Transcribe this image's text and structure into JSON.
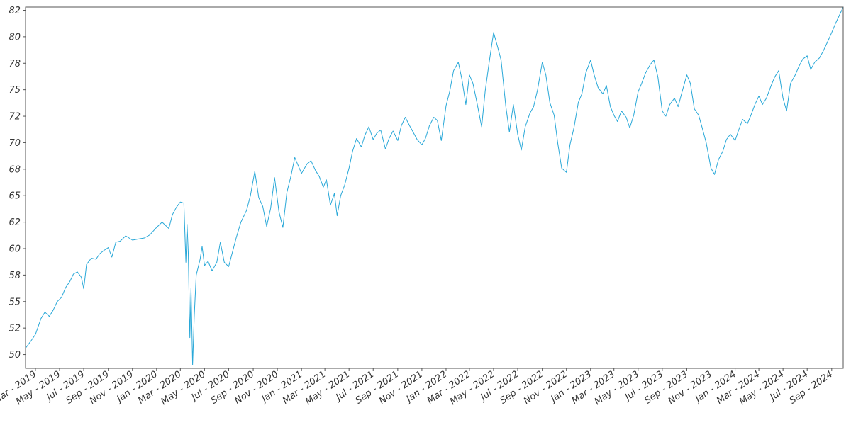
{
  "chart_data": {
    "type": "line",
    "title": "",
    "xlabel": "",
    "ylabel": "",
    "grid": false,
    "legend": "none",
    "xlim": [
      "2019-02-04",
      "2024-09-30"
    ],
    "ylim": [
      48.7,
      82.8
    ],
    "x_tick_labels": [
      "Mar - 2019",
      "May - 2019",
      "Jul - 2019",
      "Sep - 2019",
      "Nov - 2019",
      "Jan - 2020",
      "Mar - 2020",
      "May - 2020",
      "Jul - 2020",
      "Sep - 2020",
      "Nov - 2020",
      "Jan - 2021",
      "Mar - 2021",
      "May - 2021",
      "Jul - 2021",
      "Sep - 2021",
      "Nov - 2021",
      "Jan - 2022",
      "Mar - 2022",
      "May - 2022",
      "Jul - 2022",
      "Sep - 2022",
      "Nov - 2022",
      "Jan - 2023",
      "Mar - 2023",
      "May - 2023",
      "Jul - 2023",
      "Sep - 2023",
      "Nov - 2023",
      "Jan - 2024",
      "Mar - 2024",
      "May - 2024",
      "Jul - 2024",
      "Sep - 2024"
    ],
    "x_tick_dates": [
      "2019-03-01",
      "2019-05-01",
      "2019-07-01",
      "2019-09-01",
      "2019-11-01",
      "2020-01-01",
      "2020-03-01",
      "2020-05-01",
      "2020-07-01",
      "2020-09-01",
      "2020-11-01",
      "2021-01-01",
      "2021-03-01",
      "2021-05-01",
      "2021-07-01",
      "2021-09-01",
      "2021-11-01",
      "2022-01-01",
      "2022-03-01",
      "2022-05-01",
      "2022-07-01",
      "2022-09-01",
      "2022-11-01",
      "2023-01-01",
      "2023-03-01",
      "2023-05-01",
      "2023-07-01",
      "2023-09-01",
      "2023-11-01",
      "2024-01-01",
      "2024-03-01",
      "2024-05-01",
      "2024-07-01",
      "2024-09-01"
    ],
    "y_tick_values": [
      50,
      52.5,
      55,
      57.5,
      60,
      62.5,
      65,
      67.5,
      70,
      72.5,
      75,
      77.5,
      80,
      82.5
    ],
    "y_tick_labels": [
      "50",
      "52",
      "55",
      "58",
      "60",
      "62",
      "65",
      "68",
      "70",
      "72",
      "75",
      "78",
      "80",
      "82"
    ],
    "colors": {
      "line": "#29a8d8",
      "axis": "#555555",
      "text": "#333333"
    },
    "series": [
      {
        "points": [
          [
            "2019-02-04",
            50.6
          ],
          [
            "2019-02-18",
            51.3
          ],
          [
            "2019-03-01",
            51.9
          ],
          [
            "2019-03-15",
            53.4
          ],
          [
            "2019-03-25",
            54.0
          ],
          [
            "2019-04-05",
            53.6
          ],
          [
            "2019-04-15",
            54.2
          ],
          [
            "2019-04-25",
            55.0
          ],
          [
            "2019-05-06",
            55.4
          ],
          [
            "2019-05-16",
            56.3
          ],
          [
            "2019-05-27",
            56.9
          ],
          [
            "2019-06-05",
            57.6
          ],
          [
            "2019-06-15",
            57.8
          ],
          [
            "2019-06-25",
            57.3
          ],
          [
            "2019-07-01",
            56.2
          ],
          [
            "2019-07-08",
            58.5
          ],
          [
            "2019-07-20",
            59.1
          ],
          [
            "2019-08-01",
            59.0
          ],
          [
            "2019-08-10",
            59.5
          ],
          [
            "2019-08-20",
            59.8
          ],
          [
            "2019-09-01",
            60.1
          ],
          [
            "2019-09-10",
            59.2
          ],
          [
            "2019-09-20",
            60.6
          ],
          [
            "2019-10-01",
            60.7
          ],
          [
            "2019-10-15",
            61.2
          ],
          [
            "2019-11-01",
            60.8
          ],
          [
            "2019-11-15",
            60.9
          ],
          [
            "2019-12-01",
            61.0
          ],
          [
            "2019-12-15",
            61.3
          ],
          [
            "2020-01-01",
            62.0
          ],
          [
            "2020-01-15",
            62.5
          ],
          [
            "2020-02-01",
            61.9
          ],
          [
            "2020-02-10",
            63.2
          ],
          [
            "2020-02-20",
            63.9
          ],
          [
            "2020-03-01",
            64.4
          ],
          [
            "2020-03-10",
            64.3
          ],
          [
            "2020-03-15",
            58.7
          ],
          [
            "2020-03-18",
            62.3
          ],
          [
            "2020-03-21",
            59.6
          ],
          [
            "2020-03-25",
            51.6
          ],
          [
            "2020-03-28",
            56.3
          ],
          [
            "2020-04-01",
            49.0
          ],
          [
            "2020-04-05",
            53.6
          ],
          [
            "2020-04-10",
            57.5
          ],
          [
            "2020-04-20",
            59.0
          ],
          [
            "2020-04-25",
            60.2
          ],
          [
            "2020-05-01",
            58.4
          ],
          [
            "2020-05-10",
            58.8
          ],
          [
            "2020-05-20",
            57.9
          ],
          [
            "2020-06-01",
            58.7
          ],
          [
            "2020-06-10",
            60.6
          ],
          [
            "2020-06-20",
            58.7
          ],
          [
            "2020-07-01",
            58.3
          ],
          [
            "2020-07-10",
            59.6
          ],
          [
            "2020-07-20",
            61.0
          ],
          [
            "2020-08-01",
            62.5
          ],
          [
            "2020-08-15",
            63.6
          ],
          [
            "2020-08-25",
            65.0
          ],
          [
            "2020-09-05",
            67.3
          ],
          [
            "2020-09-15",
            64.8
          ],
          [
            "2020-09-25",
            64.0
          ],
          [
            "2020-10-05",
            62.1
          ],
          [
            "2020-10-15",
            63.8
          ],
          [
            "2020-10-25",
            66.7
          ],
          [
            "2020-11-05",
            63.5
          ],
          [
            "2020-11-15",
            62.0
          ],
          [
            "2020-11-25",
            65.3
          ],
          [
            "2020-12-05",
            66.8
          ],
          [
            "2020-12-15",
            68.6
          ],
          [
            "2021-01-01",
            67.1
          ],
          [
            "2021-01-15",
            68.0
          ],
          [
            "2021-01-25",
            68.3
          ],
          [
            "2021-02-05",
            67.4
          ],
          [
            "2021-02-15",
            66.8
          ],
          [
            "2021-02-25",
            65.8
          ],
          [
            "2021-03-05",
            66.5
          ],
          [
            "2021-03-15",
            64.1
          ],
          [
            "2021-03-25",
            65.2
          ],
          [
            "2021-04-01",
            63.1
          ],
          [
            "2021-04-10",
            65.0
          ],
          [
            "2021-04-20",
            66.0
          ],
          [
            "2021-05-01",
            67.6
          ],
          [
            "2021-05-10",
            69.2
          ],
          [
            "2021-05-20",
            70.4
          ],
          [
            "2021-06-01",
            69.6
          ],
          [
            "2021-06-10",
            70.7
          ],
          [
            "2021-06-20",
            71.5
          ],
          [
            "2021-07-01",
            70.3
          ],
          [
            "2021-07-10",
            70.9
          ],
          [
            "2021-07-20",
            71.2
          ],
          [
            "2021-08-01",
            69.4
          ],
          [
            "2021-08-10",
            70.4
          ],
          [
            "2021-08-20",
            71.1
          ],
          [
            "2021-09-01",
            70.2
          ],
          [
            "2021-09-10",
            71.6
          ],
          [
            "2021-09-20",
            72.4
          ],
          [
            "2021-10-01",
            71.6
          ],
          [
            "2021-10-10",
            71.0
          ],
          [
            "2021-10-20",
            70.3
          ],
          [
            "2021-11-01",
            69.8
          ],
          [
            "2021-11-10",
            70.4
          ],
          [
            "2021-11-20",
            71.6
          ],
          [
            "2021-12-01",
            72.4
          ],
          [
            "2021-12-10",
            72.1
          ],
          [
            "2021-12-20",
            70.2
          ],
          [
            "2022-01-01",
            73.5
          ],
          [
            "2022-01-10",
            74.8
          ],
          [
            "2022-01-20",
            76.8
          ],
          [
            "2022-02-01",
            77.6
          ],
          [
            "2022-02-10",
            76.0
          ],
          [
            "2022-02-20",
            73.6
          ],
          [
            "2022-03-01",
            76.4
          ],
          [
            "2022-03-10",
            75.6
          ],
          [
            "2022-03-20",
            73.8
          ],
          [
            "2022-04-01",
            71.5
          ],
          [
            "2022-04-10",
            74.9
          ],
          [
            "2022-04-20",
            77.6
          ],
          [
            "2022-05-01",
            80.4
          ],
          [
            "2022-05-10",
            79.2
          ],
          [
            "2022-05-20",
            77.8
          ],
          [
            "2022-06-01",
            73.4
          ],
          [
            "2022-06-10",
            71.0
          ],
          [
            "2022-06-20",
            73.6
          ],
          [
            "2022-07-01",
            70.8
          ],
          [
            "2022-07-10",
            69.3
          ],
          [
            "2022-07-20",
            71.5
          ],
          [
            "2022-08-01",
            72.8
          ],
          [
            "2022-08-10",
            73.4
          ],
          [
            "2022-08-20",
            75.0
          ],
          [
            "2022-09-01",
            77.6
          ],
          [
            "2022-09-10",
            76.4
          ],
          [
            "2022-09-20",
            73.8
          ],
          [
            "2022-10-01",
            72.6
          ],
          [
            "2022-10-10",
            70.0
          ],
          [
            "2022-10-20",
            67.6
          ],
          [
            "2022-11-01",
            67.2
          ],
          [
            "2022-11-10",
            69.8
          ],
          [
            "2022-11-20",
            71.4
          ],
          [
            "2022-12-01",
            73.8
          ],
          [
            "2022-12-10",
            74.6
          ],
          [
            "2022-12-20",
            76.6
          ],
          [
            "2023-01-01",
            77.8
          ],
          [
            "2023-01-10",
            76.4
          ],
          [
            "2023-01-20",
            75.2
          ],
          [
            "2023-02-01",
            74.6
          ],
          [
            "2023-02-10",
            75.4
          ],
          [
            "2023-02-20",
            73.4
          ],
          [
            "2023-03-01",
            72.6
          ],
          [
            "2023-03-10",
            72.0
          ],
          [
            "2023-03-20",
            73.0
          ],
          [
            "2023-04-01",
            72.4
          ],
          [
            "2023-04-10",
            71.4
          ],
          [
            "2023-04-20",
            72.6
          ],
          [
            "2023-05-01",
            74.8
          ],
          [
            "2023-05-10",
            75.6
          ],
          [
            "2023-05-20",
            76.6
          ],
          [
            "2023-06-01",
            77.4
          ],
          [
            "2023-06-10",
            77.8
          ],
          [
            "2023-06-20",
            76.2
          ],
          [
            "2023-07-01",
            73.0
          ],
          [
            "2023-07-10",
            72.5
          ],
          [
            "2023-07-20",
            73.6
          ],
          [
            "2023-08-01",
            74.2
          ],
          [
            "2023-08-10",
            73.4
          ],
          [
            "2023-08-20",
            74.8
          ],
          [
            "2023-09-01",
            76.4
          ],
          [
            "2023-09-10",
            75.6
          ],
          [
            "2023-09-20",
            73.2
          ],
          [
            "2023-10-01",
            72.6
          ],
          [
            "2023-10-10",
            71.4
          ],
          [
            "2023-10-20",
            70.0
          ],
          [
            "2023-11-01",
            67.6
          ],
          [
            "2023-11-10",
            67.0
          ],
          [
            "2023-11-20",
            68.4
          ],
          [
            "2023-12-01",
            69.2
          ],
          [
            "2023-12-10",
            70.3
          ],
          [
            "2023-12-20",
            70.8
          ],
          [
            "2024-01-01",
            70.2
          ],
          [
            "2024-01-10",
            71.2
          ],
          [
            "2024-01-20",
            72.2
          ],
          [
            "2024-02-01",
            71.8
          ],
          [
            "2024-02-10",
            72.6
          ],
          [
            "2024-02-20",
            73.6
          ],
          [
            "2024-03-01",
            74.4
          ],
          [
            "2024-03-10",
            73.6
          ],
          [
            "2024-03-20",
            74.2
          ],
          [
            "2024-04-01",
            75.4
          ],
          [
            "2024-04-10",
            76.2
          ],
          [
            "2024-04-20",
            76.8
          ],
          [
            "2024-05-01",
            74.2
          ],
          [
            "2024-05-10",
            73.0
          ],
          [
            "2024-05-20",
            75.6
          ],
          [
            "2024-06-01",
            76.4
          ],
          [
            "2024-06-10",
            77.2
          ],
          [
            "2024-06-20",
            77.9
          ],
          [
            "2024-07-01",
            78.2
          ],
          [
            "2024-07-10",
            76.9
          ],
          [
            "2024-07-20",
            77.6
          ],
          [
            "2024-08-01",
            78.0
          ],
          [
            "2024-08-10",
            78.6
          ],
          [
            "2024-08-20",
            79.4
          ],
          [
            "2024-09-01",
            80.4
          ],
          [
            "2024-09-10",
            81.2
          ],
          [
            "2024-09-20",
            82.0
          ],
          [
            "2024-09-30",
            82.8
          ]
        ]
      }
    ]
  }
}
